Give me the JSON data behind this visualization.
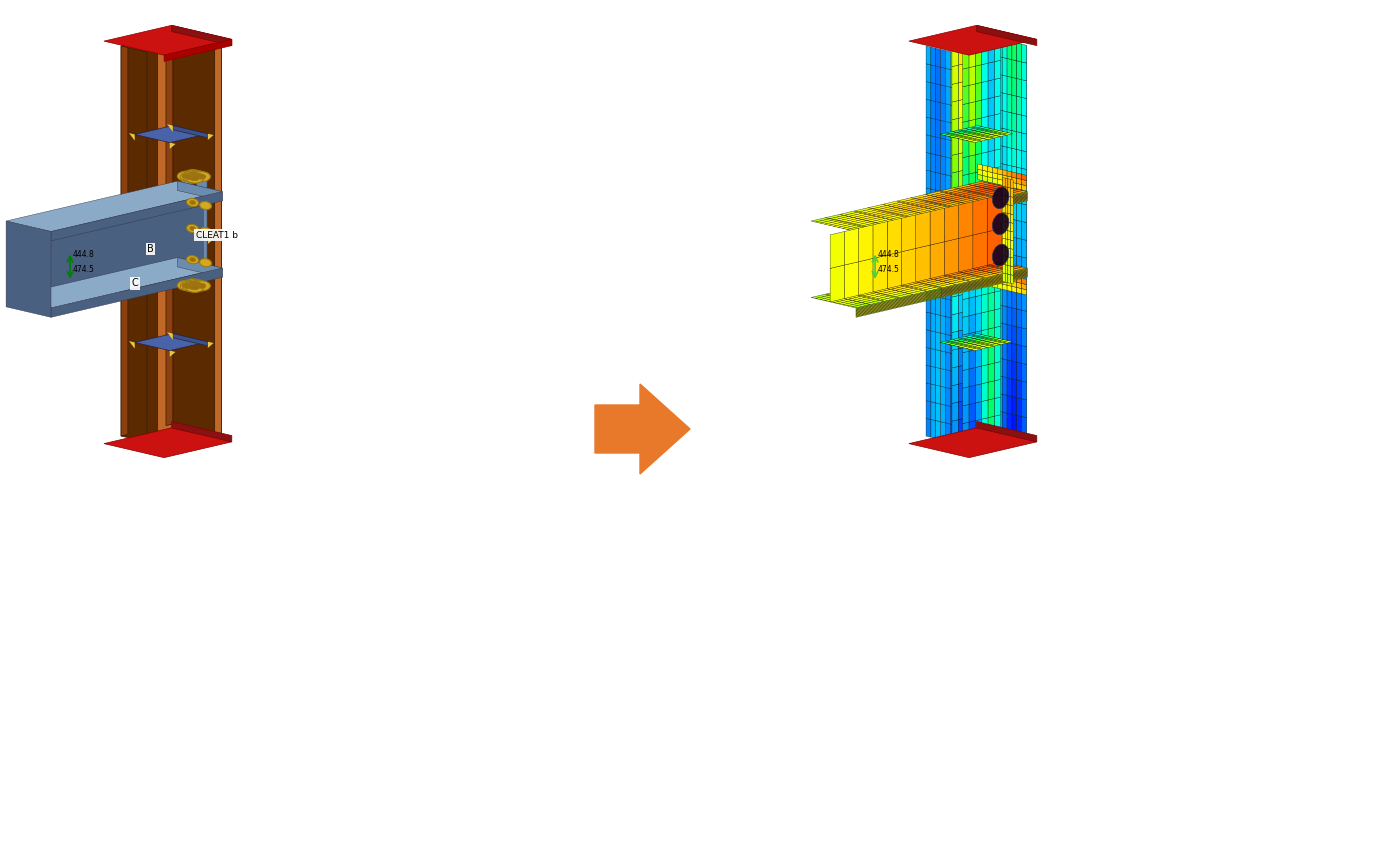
{
  "background_color": "#ffffff",
  "arrow_color": "#E8782A",
  "fig_width": 13.73,
  "fig_height": 8.59,
  "left_panel": {
    "col_brown_dark": "#5C2A00",
    "col_brown_mid": "#8B4010",
    "col_brown_light": "#C06828",
    "stiffener_blue": "#3B5188",
    "stiffener_blue_top": "#4A63A8",
    "bolt_gold": "#D4A820",
    "bolt_shadow": "#9B7A10",
    "plate_blue_gray": "#6B8CAE",
    "plate_blue_dark": "#4A6080",
    "plate_blue_top": "#8AAAC8",
    "red_plate": "#CC1111",
    "red_plate_dark": "#881111",
    "yellow_accent": "#E8C840",
    "cleat_label": "CLEAT1 b",
    "beam_label": "B",
    "col_label": "C"
  }
}
